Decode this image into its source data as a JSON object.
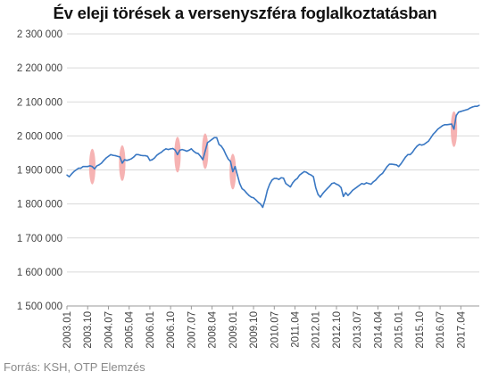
{
  "chart_data": {
    "type": "line",
    "title": "Év eleji törések a versenyszféra foglalkoztatásban",
    "source": "Forrás: KSH, OTP Elemzés",
    "xlabel": "",
    "ylabel": "",
    "ylim": [
      1500000,
      2300000
    ],
    "y_ticks": [
      1500000,
      1600000,
      1700000,
      1800000,
      1900000,
      2000000,
      2100000,
      2200000,
      2300000
    ],
    "y_tick_labels": [
      "1 500 000",
      "1 600 000",
      "1 700 000",
      "1 800 000",
      "1 900 000",
      "2 000 000",
      "2 100 000",
      "2 200 000",
      "2 300 000"
    ],
    "x_start": "2003.01",
    "x_end": "2017.12",
    "x_tick_labels": [
      "2003.01",
      "2003.10",
      "2004.07",
      "2005.04",
      "2006.01",
      "2006.10",
      "2007.07",
      "2008.04",
      "2009.01",
      "2009.10",
      "2010.07",
      "2011.04",
      "2012.01",
      "2012.10",
      "2013.07",
      "2014.04",
      "2015.01",
      "2015.10",
      "2016.07",
      "2017.04"
    ],
    "grid": "horizontal",
    "line_color": "#3a78c3",
    "highlight_color": "#f4a6a6",
    "series": [
      {
        "values": [
          1885000,
          1880000,
          1888000,
          1895000,
          1900000,
          1905000,
          1905000,
          1910000,
          1910000,
          1910000,
          1912000,
          1910000,
          1903000,
          1912000,
          1915000,
          1920000,
          1928000,
          1935000,
          1940000,
          1945000,
          1943000,
          1942000,
          1940000,
          1938000,
          1920000,
          1930000,
          1928000,
          1930000,
          1933000,
          1938000,
          1945000,
          1945000,
          1943000,
          1942000,
          1942000,
          1940000,
          1928000,
          1930000,
          1935000,
          1943000,
          1948000,
          1952000,
          1958000,
          1962000,
          1960000,
          1962000,
          1963000,
          1958000,
          1945000,
          1958000,
          1960000,
          1958000,
          1955000,
          1958000,
          1962000,
          1955000,
          1950000,
          1948000,
          1940000,
          1930000,
          1955000,
          1980000,
          1985000,
          1990000,
          1995000,
          1995000,
          1975000,
          1970000,
          1960000,
          1945000,
          1932000,
          1925000,
          1895000,
          1910000,
          1885000,
          1860000,
          1845000,
          1840000,
          1832000,
          1825000,
          1820000,
          1818000,
          1812000,
          1805000,
          1800000,
          1790000,
          1812000,
          1840000,
          1858000,
          1870000,
          1875000,
          1875000,
          1872000,
          1877000,
          1876000,
          1860000,
          1855000,
          1850000,
          1862000,
          1870000,
          1875000,
          1885000,
          1890000,
          1895000,
          1893000,
          1888000,
          1885000,
          1880000,
          1848000,
          1828000,
          1820000,
          1830000,
          1838000,
          1845000,
          1852000,
          1860000,
          1862000,
          1858000,
          1855000,
          1848000,
          1822000,
          1833000,
          1825000,
          1832000,
          1840000,
          1845000,
          1850000,
          1855000,
          1860000,
          1858000,
          1862000,
          1860000,
          1858000,
          1865000,
          1870000,
          1878000,
          1885000,
          1890000,
          1900000,
          1910000,
          1917000,
          1917000,
          1916000,
          1915000,
          1910000,
          1918000,
          1928000,
          1938000,
          1945000,
          1945000,
          1952000,
          1962000,
          1970000,
          1975000,
          1973000,
          1975000,
          1980000,
          1985000,
          1995000,
          2005000,
          2012000,
          2020000,
          2025000,
          2030000,
          2033000,
          2033000,
          2034000,
          2035000,
          2020000,
          2060000,
          2070000,
          2072000,
          2074000,
          2076000,
          2078000,
          2082000,
          2085000,
          2087000,
          2087000,
          2090000
        ]
      }
    ],
    "highlights": [
      "2003.12",
      "2005.01",
      "2007.01",
      "2008.01",
      "2009.01",
      "2017.01"
    ]
  }
}
